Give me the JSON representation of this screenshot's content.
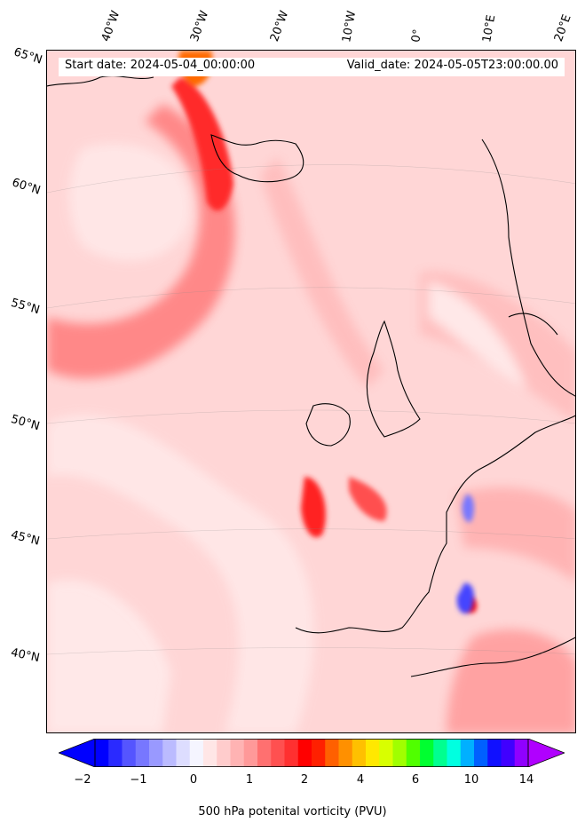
{
  "header": {
    "start_date": "Start date: 2024-05-04_00:00:00",
    "valid_date": "Valid_date: 2024-05-05T23:00:00.00"
  },
  "longitude_labels": [
    "40°W",
    "30°W",
    "20°W",
    "10°W",
    "0°",
    "10°E",
    "20°E"
  ],
  "latitude_labels": [
    "65°N",
    "60°N",
    "55°N",
    "50°N",
    "45°N",
    "40°N"
  ],
  "colorbar": {
    "ticks": [
      "−2",
      "−1",
      "0",
      "1",
      "2",
      "4",
      "6",
      "10",
      "14"
    ],
    "title": "500 hPa potenital vorticity (PVU)",
    "colors": [
      "#0000ff",
      "#2a2aff",
      "#5555ff",
      "#7777ff",
      "#9999ff",
      "#bbbbff",
      "#ddddff",
      "#f5f5ff",
      "#ffe6e6",
      "#ffcccc",
      "#ffb3b3",
      "#ff9999",
      "#ff7070",
      "#ff5050",
      "#ff3030",
      "#ff0000",
      "#ff2000",
      "#ff6000",
      "#ff9000",
      "#ffc000",
      "#ffe800",
      "#d8ff00",
      "#a0ff00",
      "#50ff00",
      "#00ff30",
      "#00ff90",
      "#00ffe0",
      "#00b0ff",
      "#0060ff",
      "#1010ff",
      "#4000ff",
      "#9000ff"
    ],
    "extend_low_color": "#0000ff",
    "extend_high_color": "#b000ff"
  }
}
